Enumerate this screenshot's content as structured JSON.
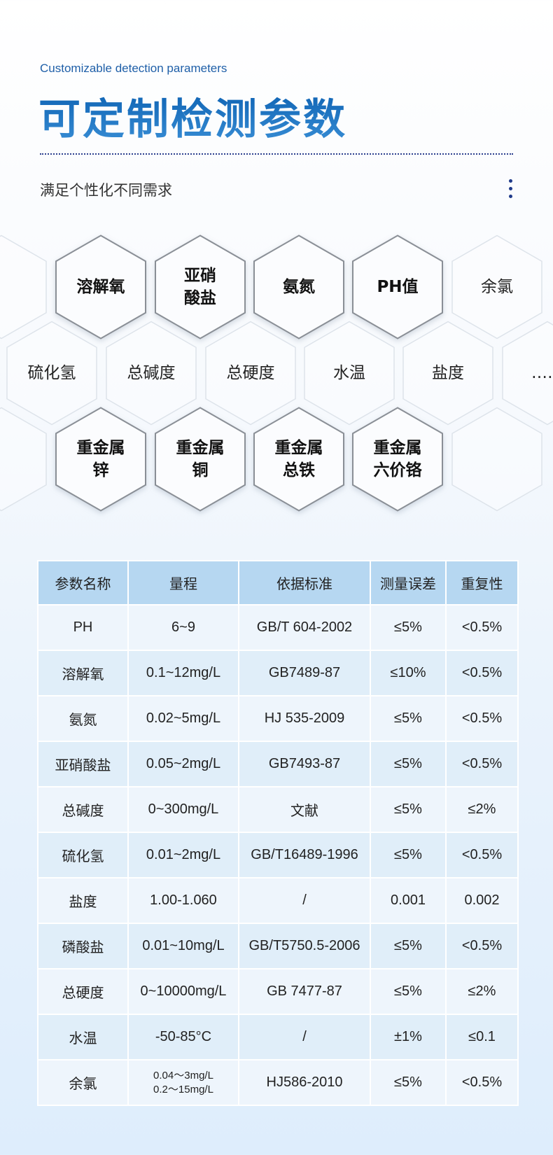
{
  "header": {
    "subtitle_en": "Customizable detection parameters",
    "title": "可定制检测参数",
    "tagline": "满足个性化不同需求",
    "menu_icon": "vertical-dots-icon",
    "accent_color": "#1f5fa8"
  },
  "hexagons": {
    "row1": [
      {
        "label": "溶解氧",
        "bold": true
      },
      {
        "label": "亚硝\n酸盐",
        "bold": true
      },
      {
        "label": "氨氮",
        "bold": true
      },
      {
        "label": "PH值",
        "bold": true
      },
      {
        "label": "余氯",
        "bold": false
      }
    ],
    "row2": [
      {
        "label": "硫化氢",
        "bold": false
      },
      {
        "label": "总碱度",
        "bold": false
      },
      {
        "label": "总硬度",
        "bold": false
      },
      {
        "label": "水温",
        "bold": false
      },
      {
        "label": "盐度",
        "bold": false
      },
      {
        "label": "……",
        "bold": false
      }
    ],
    "row3": [
      {
        "label": "重金属\n锌",
        "bold": true
      },
      {
        "label": "重金属\n铜",
        "bold": true
      },
      {
        "label": "重金属\n总铁",
        "bold": true
      },
      {
        "label": "重金属\n六价铬",
        "bold": true
      },
      {
        "label": "",
        "bold": false
      }
    ]
  },
  "table": {
    "headers": [
      "参数名称",
      "量程",
      "依据标准",
      "测量误差",
      "重复性"
    ],
    "rows": [
      [
        "PH",
        "6~9",
        "GB/T 604-2002",
        "≤5%",
        "<0.5%"
      ],
      [
        "溶解氧",
        "0.1~12mg/L",
        "GB7489-87",
        "≤10%",
        "<0.5%"
      ],
      [
        "氨氮",
        "0.02~5mg/L",
        "HJ 535-2009",
        "≤5%",
        "<0.5%"
      ],
      [
        "亚硝酸盐",
        "0.05~2mg/L",
        "GB7493-87",
        "≤5%",
        "<0.5%"
      ],
      [
        "总碱度",
        "0~300mg/L",
        "文献",
        "≤5%",
        "≤2%"
      ],
      [
        "硫化氢",
        "0.01~2mg/L",
        "GB/T16489-1996",
        "≤5%",
        "<0.5%"
      ],
      [
        "盐度",
        "1.00-1.060",
        "/",
        "0.001",
        "0.002"
      ],
      [
        "磷酸盐",
        "0.01~10mg/L",
        "GB/T5750.5-2006",
        "≤5%",
        "<0.5%"
      ],
      [
        "总硬度",
        "0~10000mg/L",
        "GB 7477-87",
        "≤5%",
        "≤2%"
      ],
      [
        "水温",
        "-50-85°C",
        "/",
        "±1%",
        "≤0.1"
      ],
      [
        "余氯",
        "0.04～3mg/L\n0.2～15mg/L",
        "HJ586-2010",
        "≤5%",
        "<0.5%"
      ]
    ]
  }
}
